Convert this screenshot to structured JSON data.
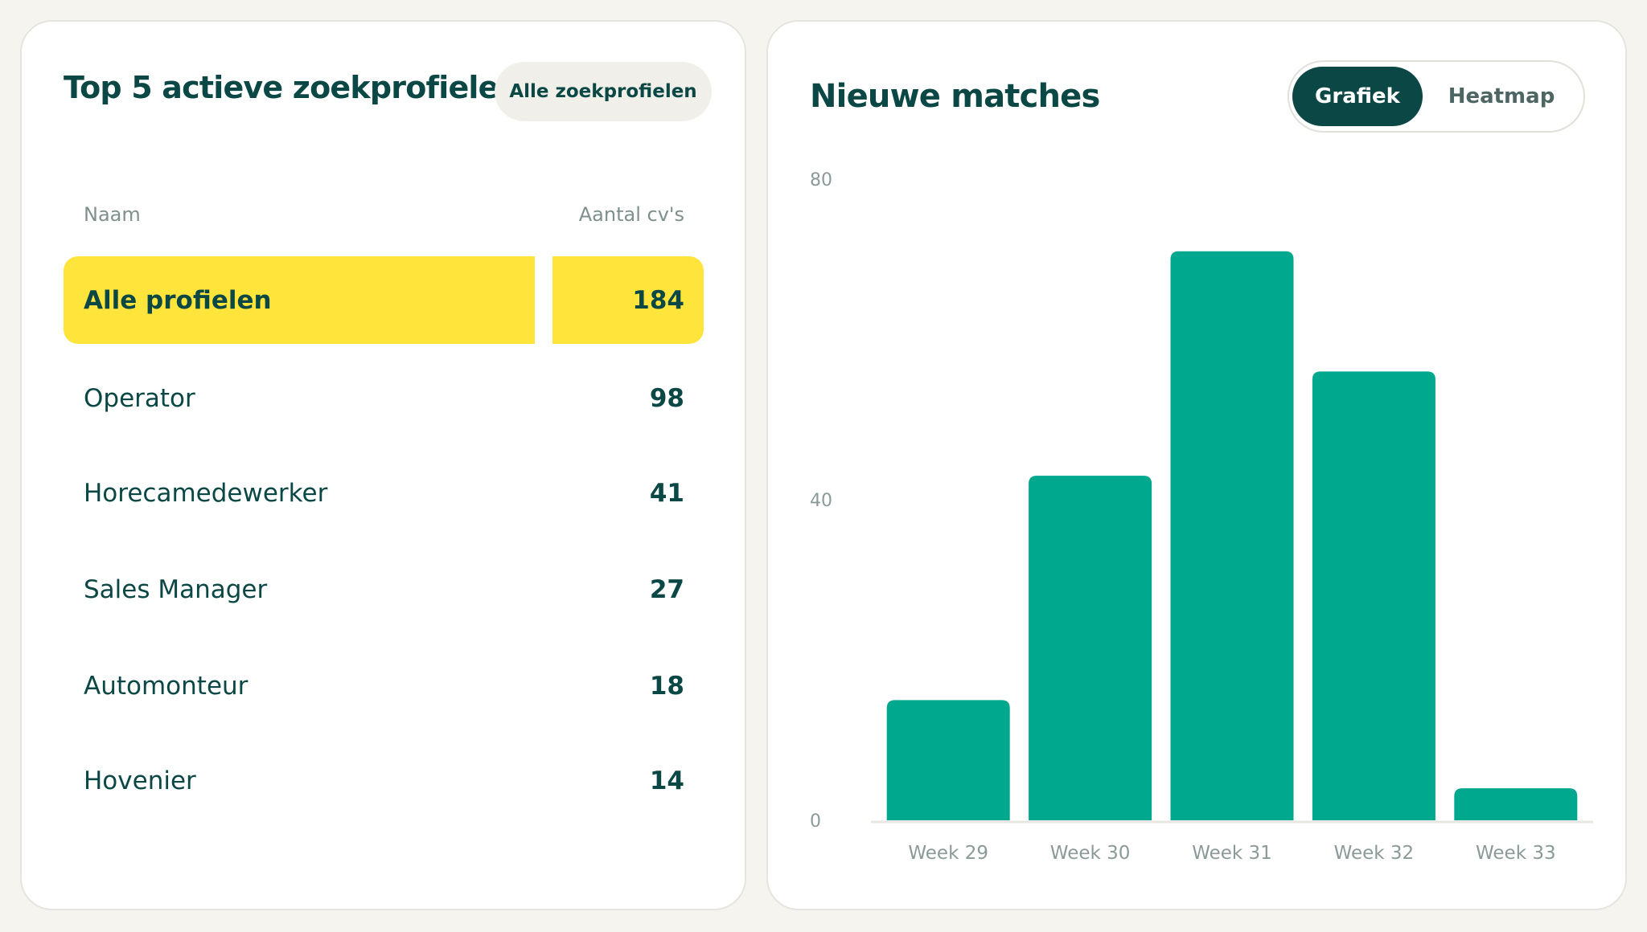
{
  "left_card": {
    "title": "Top 5 actieve zoekprofielen",
    "all_profiles_button": "Alle zoekprofielen",
    "columns": {
      "name": "Naam",
      "count": "Aantal cv's"
    },
    "highlight_row": {
      "name": "Alle profielen",
      "count": "184"
    },
    "rows": [
      {
        "name": "Operator",
        "count": "98"
      },
      {
        "name": "Horecamedewerker",
        "count": "41"
      },
      {
        "name": "Sales Manager",
        "count": "27"
      },
      {
        "name": "Automonteur",
        "count": "18"
      },
      {
        "name": "Hovenier",
        "count": "14"
      }
    ]
  },
  "right_card": {
    "title": "Nieuwe matches",
    "toggle": {
      "options": [
        "Grafiek",
        "Heatmap"
      ],
      "active": "Grafiek"
    }
  },
  "colors": {
    "primary_dark": "#0b4744",
    "highlight_yellow": "#ffe43c",
    "bar_green": "#00a88e",
    "background": "#f5f4ef"
  },
  "chart_data": {
    "type": "bar",
    "categories": [
      "Week 29",
      "Week 30",
      "Week 31",
      "Week 32",
      "Week 33"
    ],
    "values": [
      15,
      43,
      71,
      56,
      4
    ],
    "y_ticks": [
      "0",
      "40",
      "80"
    ],
    "ylim": [
      0,
      80
    ],
    "title": "Nieuwe matches",
    "xlabel": "",
    "ylabel": "",
    "grid": false
  }
}
